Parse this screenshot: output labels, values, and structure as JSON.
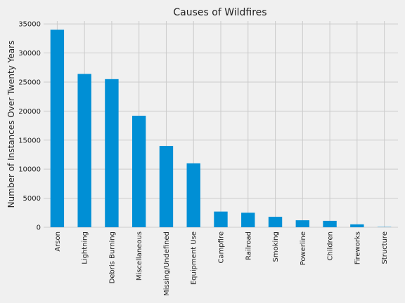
{
  "chart_data": {
    "type": "bar",
    "title": "Causes of Wildfires",
    "xlabel": "",
    "ylabel": "Number of Instances Over Twenty Years",
    "categories": [
      "Arson",
      "Lightning",
      "Debris Burning",
      "Miscellaneous",
      "Missing/Undefined",
      "Equipment Use",
      "Campfire",
      "Railroad",
      "Smoking",
      "Powerline",
      "Children",
      "Fireworks",
      "Structure"
    ],
    "values": [
      34000,
      26400,
      25500,
      19200,
      14000,
      11000,
      2700,
      2500,
      1800,
      1200,
      1100,
      500,
      50
    ],
    "ylim": [
      0,
      35500
    ],
    "yticks": [
      0,
      5000,
      10000,
      15000,
      20000,
      25000,
      30000,
      35000
    ],
    "grid": true,
    "bar_color": "#008fd5",
    "background_color": "#f0f0f0",
    "grid_color": "#cbcbcb"
  }
}
